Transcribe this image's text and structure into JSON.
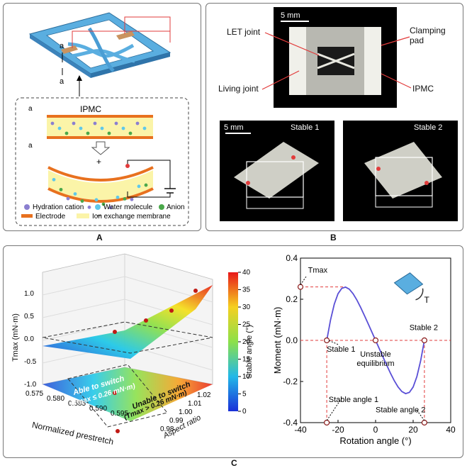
{
  "panel_labels": {
    "a": "A",
    "b": "B",
    "c": "C"
  },
  "panel_a": {
    "dim_label_top": "a",
    "dim_label_bottom": "a",
    "inset_title": "IPMC",
    "inset_dim_top": "a",
    "inset_dim_bottom": "a",
    "plus": "+",
    "minus": "−",
    "legend": {
      "hydration_cation": "Hydration cation",
      "water_molecule": "Water molecule",
      "anion": "Anion",
      "electrode": "Electrode",
      "membrane": "Ion exchange membrane"
    },
    "colors": {
      "frame": "#5aaee0",
      "electrode": "#e8711f",
      "membrane": "#fbf4a8",
      "cation": "#8b7fd0",
      "water": "#5fc8ea",
      "anion": "#4aa84a"
    }
  },
  "panel_b": {
    "scale_top": "5 mm",
    "let_joint": "LET joint",
    "living_joint": "Living joint",
    "clamping_pad": "Clamping\npad",
    "ipmc": "IPMC",
    "scale_bottom": "5 mm",
    "stable1": "Stable 1",
    "stable2": "Stable 2"
  },
  "panel_c_left": {
    "zlabel": "Tmax (mN·m)",
    "xlabel": "Normalized prestretch",
    "ylabel": "Aspect ratio",
    "z_ticks": [
      "-1.0",
      "-0.5",
      "0.0",
      "0.5",
      "1.0"
    ],
    "x_ticks": [
      "0.575",
      "0.580",
      "0.585",
      "0.590",
      "0.595"
    ],
    "y_ticks": [
      "0.98",
      "0.99",
      "1.00",
      "1.01",
      "1.02"
    ],
    "colorbar_label": "Stable angle (°)",
    "colorbar_ticks": [
      "0",
      "5",
      "10",
      "15",
      "20",
      "25",
      "30",
      "35",
      "40"
    ],
    "region_able": "Able to switch",
    "region_able_cond": "(Tmax ≤ 0.26 mN·m)",
    "region_unable": "Unable to switch",
    "region_unable_cond": "(Tmax > 0.26 mN·m)"
  },
  "chart_data": {
    "type": "line",
    "title": "",
    "xlabel": "Rotation angle (°)",
    "ylabel": "Moment (mN·m)",
    "xlim": [
      -40,
      40
    ],
    "ylim": [
      -0.4,
      0.4
    ],
    "x_ticks": [
      "-40",
      "-20",
      "0",
      "20",
      "40"
    ],
    "y_ticks": [
      "-0.4",
      "-0.2",
      "0.0",
      "0.2",
      "0.4"
    ],
    "series": [
      {
        "name": "",
        "color": "#5a4fd6",
        "x": [
          -26,
          -24,
          -22,
          -20,
          -18,
          -16,
          -14,
          -12,
          -10,
          -8,
          -6,
          -4,
          -2,
          0,
          2,
          4,
          6,
          8,
          10,
          12,
          14,
          16,
          18,
          20,
          22,
          24,
          26
        ],
        "y": [
          0.0,
          0.099,
          0.176,
          0.227,
          0.253,
          0.259,
          0.249,
          0.227,
          0.197,
          0.161,
          0.122,
          0.082,
          0.041,
          0.0,
          -0.041,
          -0.082,
          -0.122,
          -0.161,
          -0.197,
          -0.227,
          -0.249,
          -0.259,
          -0.253,
          -0.227,
          -0.176,
          -0.099,
          0.0
        ]
      }
    ],
    "annotations": {
      "tmax": "Tmax",
      "stable1": "Stable 1",
      "stable2": "Stable 2",
      "unstable": "Unstable\nequilibrium",
      "stable_angle1": "Stable angle 1",
      "stable_angle2": "Stable angle 2",
      "torque": "T"
    },
    "markers": [
      {
        "x": -40,
        "y": 0.26
      },
      {
        "x": -26,
        "y": 0.0
      },
      {
        "x": 0,
        "y": 0.0
      },
      {
        "x": 26,
        "y": 0.0
      },
      {
        "x": -26,
        "y": -0.4
      },
      {
        "x": 26,
        "y": -0.4
      }
    ],
    "tmax_value": 0.26,
    "stable_angles": [
      -26,
      26
    ]
  }
}
